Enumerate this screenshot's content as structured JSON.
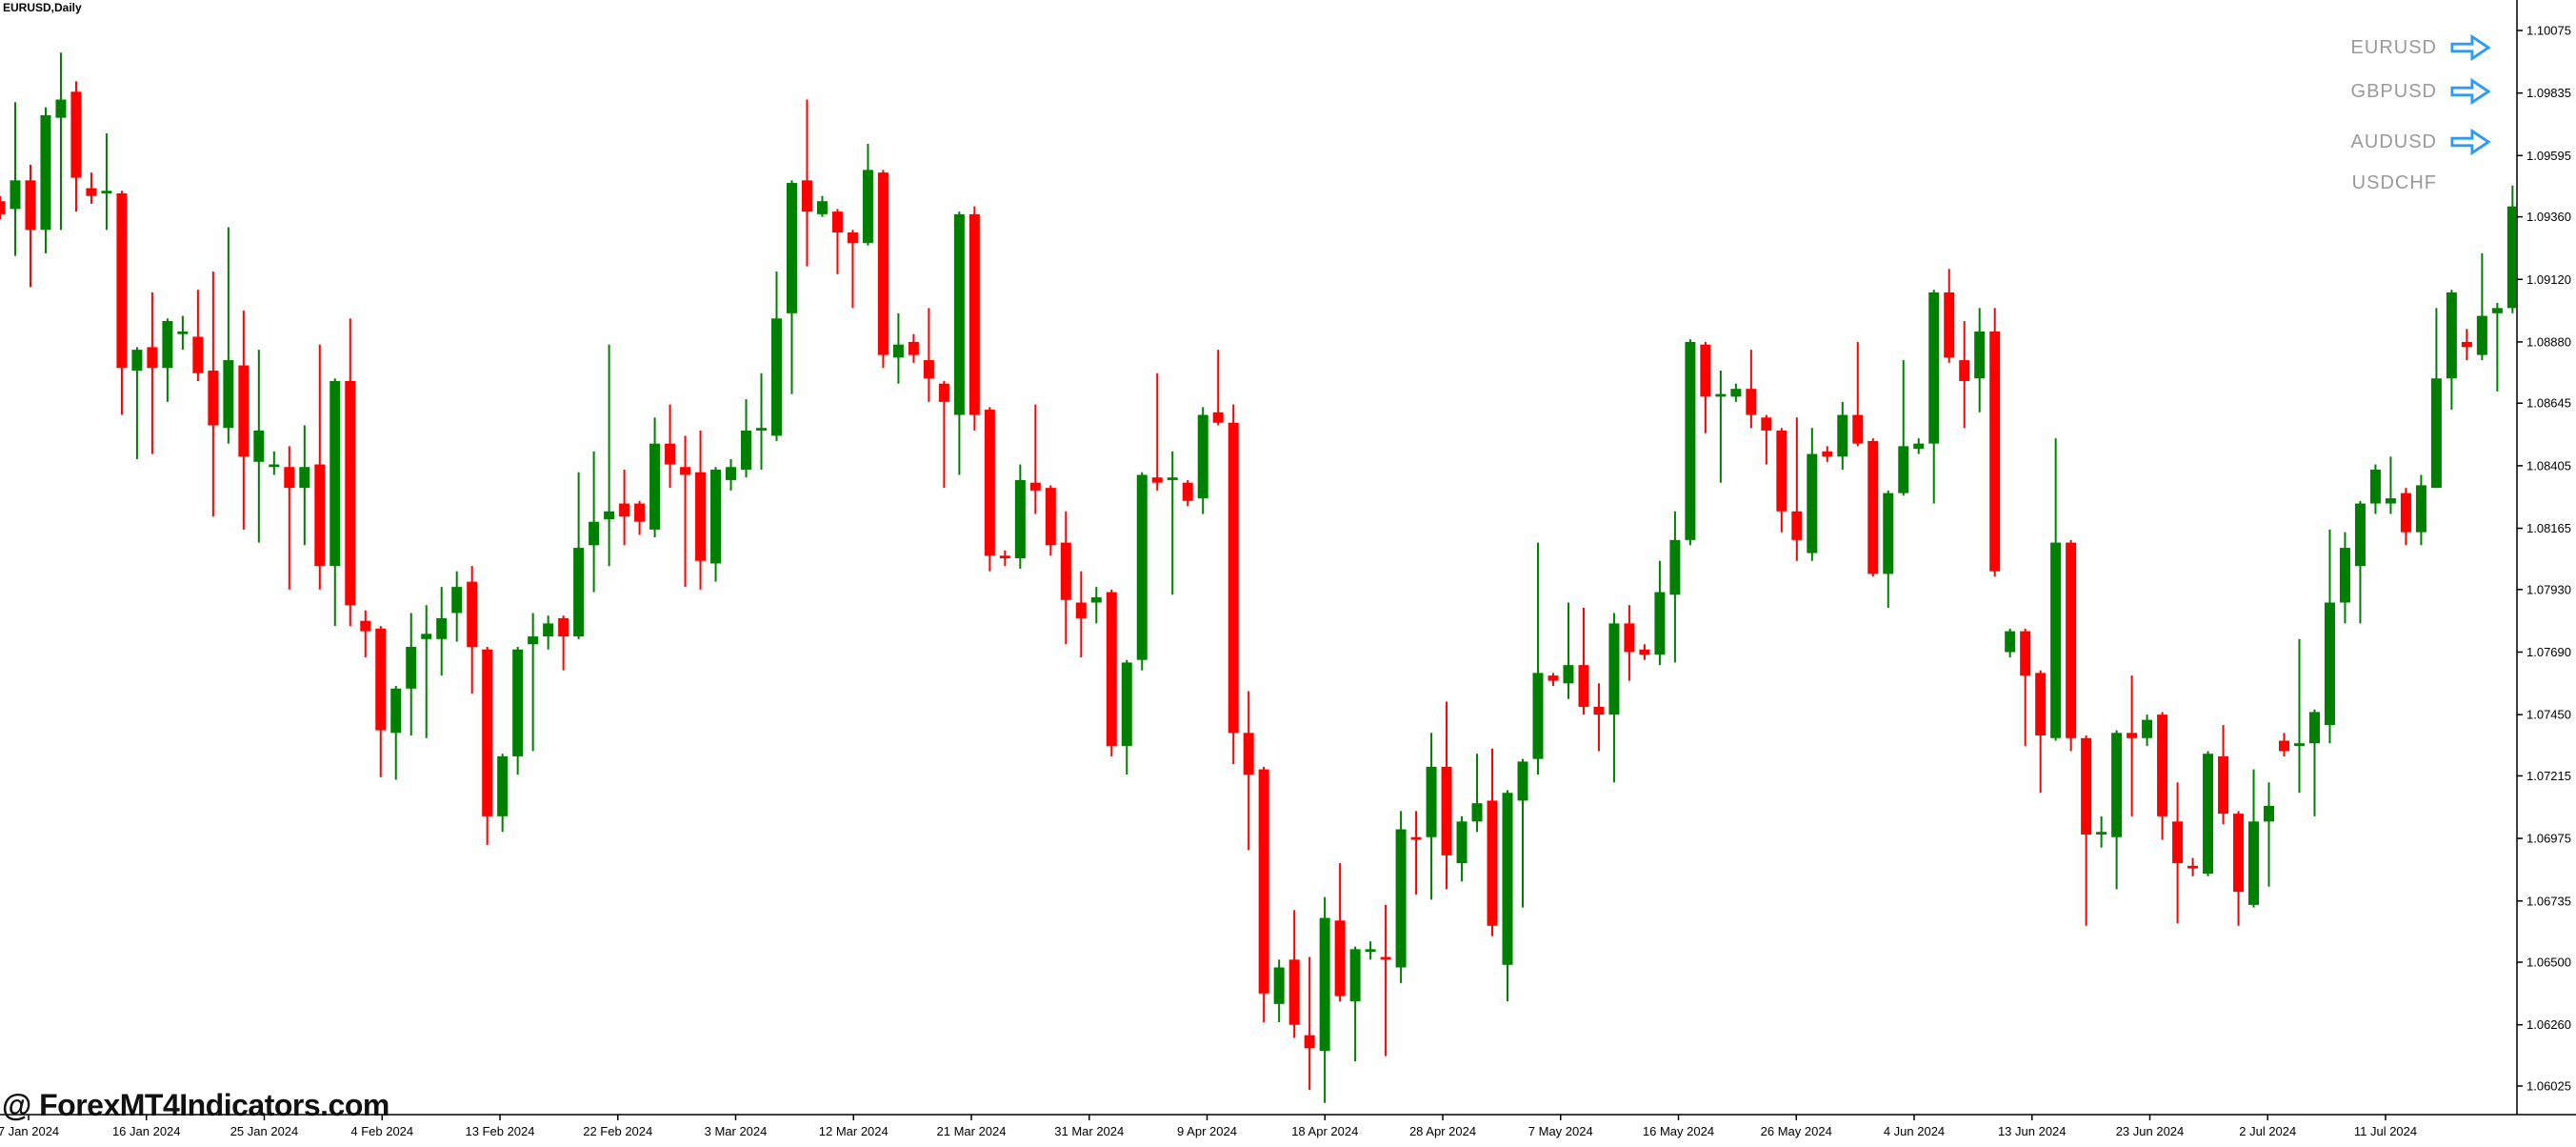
{
  "title": "EURUSD,Daily",
  "watermark": "@ ForexMT4Indicators.com",
  "symbol_panel": {
    "items": [
      {
        "label": "EURUSD",
        "has_arrow": true
      },
      {
        "label": "GBPUSD",
        "has_arrow": true
      },
      {
        "label": "AUDUSD",
        "has_arrow": true
      },
      {
        "label": "USDCHF",
        "has_arrow": false
      }
    ]
  },
  "colors": {
    "background": "#ffffff",
    "bull": "#008000",
    "bear": "#ff0000",
    "axis": "#000000",
    "symbol_text": "#9a9a9a",
    "arrow_blue": "#2d9bf0",
    "watermark": "#111111"
  },
  "chart_data": {
    "type": "candlestick",
    "symbol": "EURUSD",
    "timeframe": "Daily",
    "title": "EURUSD,Daily",
    "grid": false,
    "legend": "none",
    "ylim": [
      1.0592,
      1.1019
    ],
    "y_axis_ticks": [
      "1.10075",
      "1.09835",
      "1.09595",
      "1.09360",
      "1.09120",
      "1.08880",
      "1.08645",
      "1.08405",
      "1.08165",
      "1.07930",
      "1.07690",
      "1.07450",
      "1.07215",
      "1.06975",
      "1.06735",
      "1.06500",
      "1.06260",
      "1.06025"
    ],
    "x_axis_ticks": [
      "7 Jan 2024",
      "16 Jan 2024",
      "25 Jan 2024",
      "4 Feb 2024",
      "13 Feb 2024",
      "22 Feb 2024",
      "3 Mar 2024",
      "12 Mar 2024",
      "21 Mar 2024",
      "31 Mar 2024",
      "9 Apr 2024",
      "18 Apr 2024",
      "28 Apr 2024",
      "7 May 2024",
      "16 May 2024",
      "26 May 2024",
      "4 Jun 2024",
      "13 Jun 2024",
      "23 Jun 2024",
      "2 Jul 2024",
      "11 Jul 2024"
    ],
    "candles": [
      [
        1.0942,
        1.0944,
        1.0935,
        1.0937
      ],
      [
        1.0939,
        1.098,
        1.0921,
        1.095
      ],
      [
        1.095,
        1.0956,
        1.0909,
        1.0931
      ],
      [
        1.0931,
        1.0978,
        1.0922,
        1.0975
      ],
      [
        1.0974,
        1.0999,
        1.0931,
        1.0981
      ],
      [
        1.0984,
        1.0988,
        1.0938,
        1.0951
      ],
      [
        1.0947,
        1.0953,
        1.0941,
        1.0944
      ],
      [
        1.0945,
        1.0968,
        1.0931,
        1.0946
      ],
      [
        1.0945,
        1.0946,
        1.086,
        1.0878
      ],
      [
        1.0877,
        1.0886,
        1.0843,
        1.0885
      ],
      [
        1.0886,
        1.0907,
        1.0845,
        1.0878
      ],
      [
        1.0878,
        1.0897,
        1.0865,
        1.0896
      ],
      [
        1.0891,
        1.0898,
        1.0885,
        1.0892
      ],
      [
        1.089,
        1.0908,
        1.0873,
        1.0876
      ],
      [
        1.0877,
        1.0915,
        1.0821,
        1.0856
      ],
      [
        1.0855,
        1.0932,
        1.0849,
        1.0881
      ],
      [
        1.0879,
        1.09,
        1.0816,
        1.0844
      ],
      [
        1.0842,
        1.0885,
        1.0811,
        1.0854
      ],
      [
        1.084,
        1.0846,
        1.0837,
        1.0841
      ],
      [
        1.084,
        1.0848,
        1.0793,
        1.0832
      ],
      [
        1.0832,
        1.0856,
        1.081,
        1.084
      ],
      [
        1.0841,
        1.0887,
        1.0793,
        1.0802
      ],
      [
        1.0802,
        1.0874,
        1.0779,
        1.0873
      ],
      [
        1.0873,
        1.0897,
        1.0779,
        1.0787
      ],
      [
        1.0781,
        1.0785,
        1.0767,
        1.0777
      ],
      [
        1.0778,
        1.0779,
        1.0721,
        1.0739
      ],
      [
        1.0738,
        1.0756,
        1.072,
        1.0755
      ],
      [
        1.0755,
        1.0784,
        1.0737,
        1.0771
      ],
      [
        1.0774,
        1.0787,
        1.0736,
        1.0776
      ],
      [
        1.0774,
        1.0794,
        1.076,
        1.0782
      ],
      [
        1.0784,
        1.08,
        1.0773,
        1.0794
      ],
      [
        1.0796,
        1.0802,
        1.0753,
        1.0771
      ],
      [
        1.077,
        1.0771,
        1.0695,
        1.0706
      ],
      [
        1.0706,
        1.073,
        1.07,
        1.0729
      ],
      [
        1.0729,
        1.0771,
        1.0722,
        1.077
      ],
      [
        1.0772,
        1.0784,
        1.0731,
        1.0775
      ],
      [
        1.0775,
        1.0783,
        1.077,
        1.078
      ],
      [
        1.0782,
        1.0783,
        1.0762,
        1.0775
      ],
      [
        1.0775,
        1.0838,
        1.0774,
        1.0809
      ],
      [
        1.081,
        1.0846,
        1.0792,
        1.0819
      ],
      [
        1.082,
        1.0887,
        1.0802,
        1.0823
      ],
      [
        1.0826,
        1.0839,
        1.081,
        1.0821
      ],
      [
        1.0826,
        1.0827,
        1.0814,
        1.0819
      ],
      [
        1.0816,
        1.0859,
        1.0813,
        1.0849
      ],
      [
        1.0849,
        1.0864,
        1.0832,
        1.0841
      ],
      [
        1.084,
        1.0852,
        1.0794,
        1.0837
      ],
      [
        1.0838,
        1.0854,
        1.0793,
        1.0804
      ],
      [
        1.0803,
        1.084,
        1.0796,
        1.0839
      ],
      [
        1.0835,
        1.0843,
        1.0831,
        1.084
      ],
      [
        1.0839,
        1.0866,
        1.0836,
        1.0854
      ],
      [
        1.0854,
        1.0876,
        1.0839,
        1.0855
      ],
      [
        1.0852,
        1.0915,
        1.085,
        1.0897
      ],
      [
        1.0899,
        1.095,
        1.0868,
        1.0949
      ],
      [
        1.095,
        1.0981,
        1.0917,
        1.0938
      ],
      [
        1.0937,
        1.0944,
        1.0936,
        1.0942
      ],
      [
        1.0938,
        1.0939,
        1.0914,
        1.093
      ],
      [
        1.093,
        1.0931,
        1.0901,
        1.0926
      ],
      [
        1.0926,
        1.0964,
        1.0925,
        1.0954
      ],
      [
        1.0953,
        1.0954,
        1.0878,
        1.0883
      ],
      [
        1.0882,
        1.0899,
        1.0872,
        1.0887
      ],
      [
        1.0888,
        1.0891,
        1.088,
        1.0883
      ],
      [
        1.0881,
        1.0901,
        1.0865,
        1.0874
      ],
      [
        1.0872,
        1.0873,
        1.0832,
        1.0865
      ],
      [
        1.086,
        1.0938,
        1.0837,
        1.0937
      ],
      [
        1.0937,
        1.094,
        1.0854,
        1.086
      ],
      [
        1.0862,
        1.0863,
        1.08,
        1.0806
      ],
      [
        1.0806,
        1.0808,
        1.0802,
        1.0805
      ],
      [
        1.0805,
        1.0841,
        1.0801,
        1.0835
      ],
      [
        1.0834,
        1.0864,
        1.0822,
        1.0831
      ],
      [
        1.0832,
        1.0833,
        1.0806,
        1.081
      ],
      [
        1.0811,
        1.0823,
        1.0772,
        1.0789
      ],
      [
        1.0788,
        1.08,
        1.0767,
        1.0782
      ],
      [
        1.0788,
        1.0794,
        1.078,
        1.079
      ],
      [
        1.0792,
        1.0793,
        1.0729,
        1.0733
      ],
      [
        1.0733,
        1.0766,
        1.0722,
        1.0765
      ],
      [
        1.0766,
        1.0838,
        1.0762,
        1.0837
      ],
      [
        1.0836,
        1.0876,
        1.0831,
        1.0834
      ],
      [
        1.0835,
        1.0846,
        1.0791,
        1.0836
      ],
      [
        1.0834,
        1.0835,
        1.0825,
        1.0827
      ],
      [
        1.0828,
        1.0863,
        1.0822,
        1.086
      ],
      [
        1.0861,
        1.0885,
        1.0856,
        1.0857
      ],
      [
        1.0857,
        1.0864,
        1.0726,
        1.0738
      ],
      [
        1.0738,
        1.0754,
        1.0693,
        1.0722
      ],
      [
        1.0724,
        1.0725,
        1.0627,
        1.0638
      ],
      [
        1.0634,
        1.0651,
        1.0627,
        1.0648
      ],
      [
        1.0651,
        1.067,
        1.0621,
        1.0626
      ],
      [
        1.0622,
        1.0652,
        1.0601,
        1.0617
      ],
      [
        1.0616,
        1.0675,
        1.0596,
        1.0667
      ],
      [
        1.0666,
        1.0688,
        1.0635,
        1.0637
      ],
      [
        1.0635,
        1.0656,
        1.0612,
        1.0655
      ],
      [
        1.0654,
        1.0658,
        1.0651,
        1.0655
      ],
      [
        1.0652,
        1.0672,
        1.0614,
        1.0651
      ],
      [
        1.0648,
        1.0708,
        1.0642,
        1.0701
      ],
      [
        1.0698,
        1.0708,
        1.0676,
        1.0697
      ],
      [
        1.0698,
        1.0738,
        1.0674,
        1.0725
      ],
      [
        1.0725,
        1.075,
        1.0678,
        1.0691
      ],
      [
        1.0688,
        1.0706,
        1.0681,
        1.0704
      ],
      [
        1.0704,
        1.073,
        1.07,
        1.0711
      ],
      [
        1.0712,
        1.0732,
        1.066,
        1.0664
      ],
      [
        1.0649,
        1.0716,
        1.0635,
        1.0715
      ],
      [
        1.0712,
        1.0728,
        1.0671,
        1.0727
      ],
      [
        1.0728,
        1.0811,
        1.0722,
        1.0761
      ],
      [
        1.076,
        1.0761,
        1.0756,
        1.0758
      ],
      [
        1.0757,
        1.0788,
        1.0751,
        1.0764
      ],
      [
        1.0764,
        1.0786,
        1.0745,
        1.0748
      ],
      [
        1.0748,
        1.0757,
        1.0731,
        1.0745
      ],
      [
        1.0745,
        1.0784,
        1.0719,
        1.078
      ],
      [
        1.078,
        1.0787,
        1.0758,
        1.0769
      ],
      [
        1.077,
        1.0772,
        1.0766,
        1.0768
      ],
      [
        1.0768,
        1.0804,
        1.0764,
        1.0792
      ],
      [
        1.0791,
        1.0823,
        1.0765,
        1.0812
      ],
      [
        1.0812,
        1.0889,
        1.081,
        1.0888
      ],
      [
        1.0887,
        1.0888,
        1.0853,
        1.0867
      ],
      [
        1.0867,
        1.0877,
        1.0834,
        1.0868
      ],
      [
        1.0867,
        1.0872,
        1.0865,
        1.087
      ],
      [
        1.087,
        1.0885,
        1.0855,
        1.086
      ],
      [
        1.0859,
        1.086,
        1.0841,
        1.0854
      ],
      [
        1.0854,
        1.0855,
        1.0815,
        1.0823
      ],
      [
        1.0823,
        1.0859,
        1.0804,
        1.0812
      ],
      [
        1.0807,
        1.0855,
        1.0804,
        1.0845
      ],
      [
        1.0846,
        1.0848,
        1.0842,
        1.0844
      ],
      [
        1.0844,
        1.0865,
        1.0839,
        1.086
      ],
      [
        1.086,
        1.0888,
        1.0848,
        1.0849
      ],
      [
        1.085,
        1.0851,
        1.0798,
        1.0799
      ],
      [
        1.0799,
        1.0831,
        1.0786,
        1.083
      ],
      [
        1.083,
        1.0881,
        1.0829,
        1.0848
      ],
      [
        1.0847,
        1.0851,
        1.0845,
        1.0849
      ],
      [
        1.0849,
        1.0908,
        1.0826,
        1.0907
      ],
      [
        1.0907,
        1.0916,
        1.088,
        1.0882
      ],
      [
        1.0881,
        1.0896,
        1.0855,
        1.0873
      ],
      [
        1.0874,
        1.0901,
        1.0861,
        1.0892
      ],
      [
        1.0892,
        1.0901,
        1.0798,
        1.08
      ],
      [
        1.0769,
        1.0778,
        1.0767,
        1.0777
      ],
      [
        1.0777,
        1.0778,
        1.0733,
        1.076
      ],
      [
        1.0761,
        1.0762,
        1.0715,
        1.0737
      ],
      [
        1.0736,
        1.0851,
        1.0735,
        1.0811
      ],
      [
        1.0811,
        1.0812,
        1.0731,
        1.0736
      ],
      [
        1.0736,
        1.0737,
        1.0664,
        1.0699
      ],
      [
        1.0699,
        1.0706,
        1.0694,
        1.07
      ],
      [
        1.0698,
        1.0739,
        1.0678,
        1.0738
      ],
      [
        1.0738,
        1.076,
        1.0706,
        1.0736
      ],
      [
        1.0736,
        1.0745,
        1.0733,
        1.0743
      ],
      [
        1.0745,
        1.0746,
        1.0697,
        1.0706
      ],
      [
        1.0704,
        1.0719,
        1.0665,
        1.0688
      ],
      [
        1.0687,
        1.069,
        1.0683,
        1.0686
      ],
      [
        1.0684,
        1.0731,
        1.0683,
        1.073
      ],
      [
        1.0729,
        1.0741,
        1.0703,
        1.0707
      ],
      [
        1.0707,
        1.0708,
        1.0664,
        1.0677
      ],
      [
        1.0672,
        1.0724,
        1.0671,
        1.0704
      ],
      [
        1.0704,
        1.0719,
        1.0679,
        1.071
      ],
      [
        1.0735,
        1.0738,
        1.0729,
        1.0731
      ],
      [
        1.0733,
        1.0774,
        1.0715,
        1.0734
      ],
      [
        1.0734,
        1.0747,
        1.0706,
        1.0746
      ],
      [
        1.0741,
        1.0816,
        1.0734,
        1.0788
      ],
      [
        1.0788,
        1.0815,
        1.078,
        1.0809
      ],
      [
        1.0802,
        1.0827,
        1.078,
        1.0826
      ],
      [
        1.0826,
        1.0841,
        1.0822,
        1.0839
      ],
      [
        1.0826,
        1.0844,
        1.0822,
        1.0828
      ],
      [
        1.083,
        1.0832,
        1.081,
        1.0815
      ],
      [
        1.0815,
        1.0837,
        1.081,
        1.0833
      ],
      [
        1.0832,
        1.0901,
        1.0832,
        1.0874
      ],
      [
        1.0874,
        1.0908,
        1.0862,
        1.0907
      ],
      [
        1.0888,
        1.0893,
        1.0881,
        1.0886
      ],
      [
        1.0883,
        1.0922,
        1.0881,
        1.0898
      ],
      [
        1.0899,
        1.0903,
        1.0869,
        1.0901
      ],
      [
        1.0901,
        1.0948,
        1.0899,
        1.094
      ]
    ]
  }
}
